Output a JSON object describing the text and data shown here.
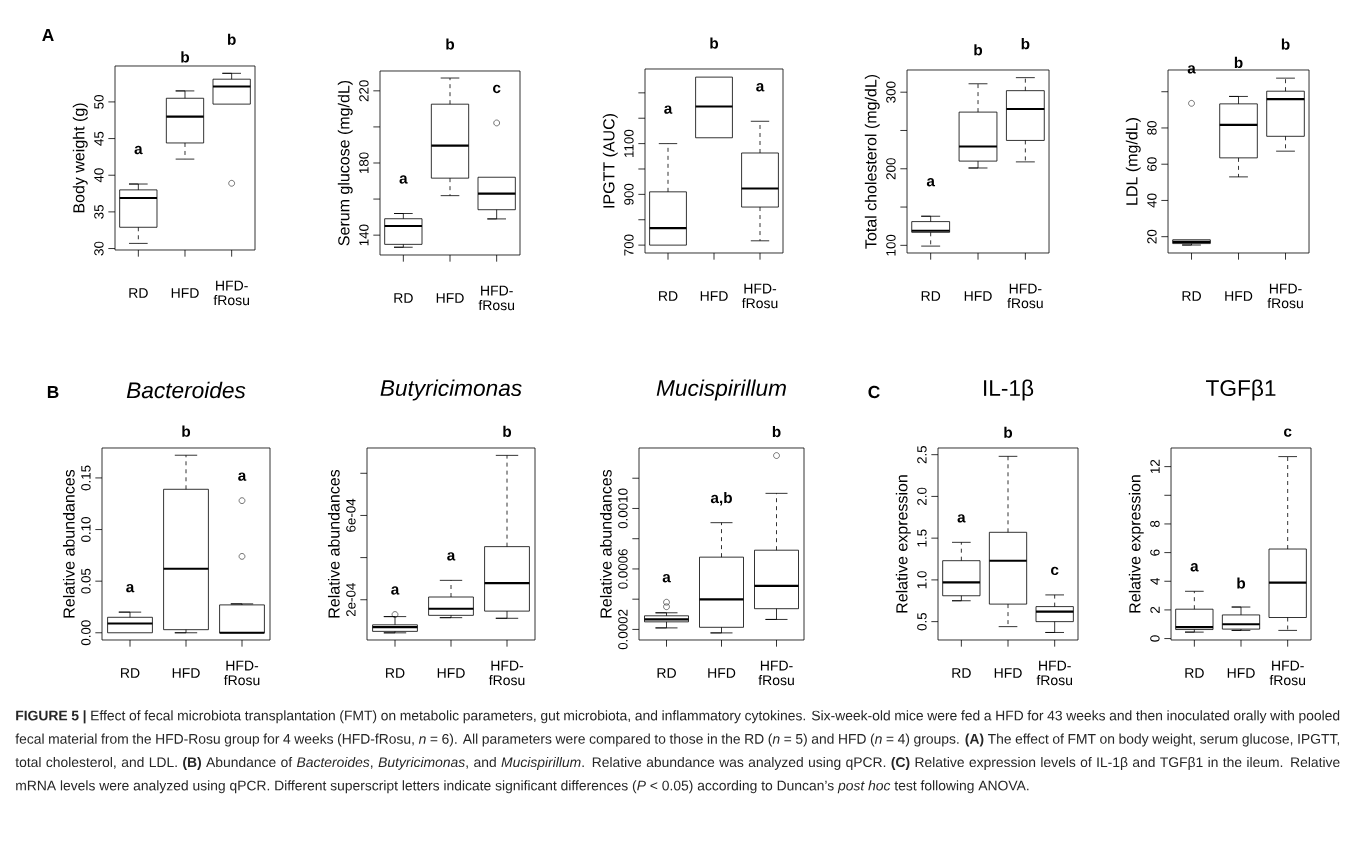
{
  "chart_data": [
    {
      "type": "box",
      "ylabel": "Body weight (g)",
      "categories": [
        "RD",
        "HFD",
        "HFD-fRosu"
      ],
      "ylim": [
        29.8,
        54.9
      ],
      "yticks": [
        30,
        35,
        40,
        45,
        50
      ],
      "series": [
        {
          "color": "#000000",
          "boxes": [
            {
              "low": 30.7,
              "q1": 32.9,
              "median": 36.9,
              "q3": 38.0,
              "high": 38.8
            },
            {
              "low": 42.2,
              "q1": 44.4,
              "median": 48.0,
              "q3": 50.5,
              "high": 51.5
            },
            {
              "low": 49.7,
              "q1": 49.7,
              "median": 52.1,
              "q3": 53.1,
              "high": 53.9,
              "outliers": [
                38.9
              ]
            }
          ]
        }
      ],
      "annotations": [
        "A",
        "a",
        "b",
        "b",
        "**FIGURE 5 |** Effect of fecal microbiota transplantation (FMT) on metabolic parameters, gut microbiota, and inflammatory cytokines. Six-week-old mice were fed a HFD for 43 weeks and then inoculated orally with pooled fecal material from the HFD-Rosu group for 4 weeks (HFD-fRosu, *n* = 6). All parameters were compared to those in the RD (*n* = 5) and HFD (*n* = 4) groups. **(A)** The effect of FMT on body weight, serum glucose, IPGTT, total cholesterol, and LDL. **(B)** Abundance of *Bacteroides*, *Butyricimonas*, and *Mucispirillum*. Relative abundance was analyzed using qPCR. **(C)** Relative expression levels of IL-1β and TGFβ1 in the ileum. Relative mRNA levels were analyzed using qPCR. Different superscript letters indicate significant differences (*P* < 0.05) according to Duncan’s *post hoc* test following ANOVA."
      ]
    },
    {
      "type": "box",
      "ylabel": "Serum glucose (mg/dL)",
      "categories": [
        "RD",
        "HFD",
        "HFD-fRosu"
      ],
      "ylim": [
        129,
        231
      ],
      "yticks": [
        140,
        {
          "value": 160,
          "label": null
        },
        180,
        {
          "value": 200,
          "label": null
        },
        220
      ],
      "series": [
        {
          "color": "#000000",
          "boxes": [
            {
              "low": 133.3,
              "q1": 134.9,
              "median": 145.1,
              "q3": 149.1,
              "high": 152
            },
            {
              "low": 161.9,
              "q1": 171.6,
              "median": 189.6,
              "q3": 212.6,
              "high": 227.1
            },
            {
              "low": 149,
              "q1": 154.1,
              "median": 163,
              "q3": 172.1,
              "high": 172.1,
              "outliers": [
                202.2
              ]
            }
          ]
        }
      ],
      "annotations": [
        "a",
        "b",
        "c"
      ]
    },
    {
      "type": "box",
      "ylabel": "IPGTT (AUC)",
      "categories": [
        "RD",
        "HFD",
        "HFD-fRosu"
      ],
      "ylim": [
        669,
        1394
      ],
      "yticks": [
        700,
        {
          "value": 800,
          "label": null
        },
        900,
        {
          "value": 1000,
          "label": null
        },
        1100,
        {
          "value": 1200,
          "label": null
        },
        {
          "value": 1300,
          "label": null
        }
      ],
      "series": [
        {
          "color": "#000000",
          "boxes": [
            {
              "low": 700,
              "q1": 700,
              "median": 767,
              "q3": 910,
              "high": 1100
            },
            {
              "low": 1123,
              "q1": 1123,
              "median": 1246,
              "q3": 1362,
              "high": 1362
            },
            {
              "low": 717,
              "q1": 850,
              "median": 923,
              "q3": 1063,
              "high": 1188
            }
          ]
        }
      ],
      "annotations": [
        "a",
        "b",
        "a"
      ]
    },
    {
      "type": "box",
      "ylabel": "Total cholesterol (mg/dL)",
      "categories": [
        "RD",
        "HFD",
        "HFD-fRosu"
      ],
      "ylim": [
        90,
        329
      ],
      "yticks": [
        100,
        {
          "value": 150,
          "label": null
        },
        200,
        {
          "value": 250,
          "label": null
        },
        300
      ],
      "series": [
        {
          "color": "#000000",
          "boxes": [
            {
              "low": 99,
              "q1": 117,
              "median": 119,
              "q3": 131,
              "high": 138
            },
            {
              "low": 201,
              "q1": 210,
              "median": 229,
              "q3": 274,
              "high": 311
            },
            {
              "low": 209,
              "q1": 237,
              "median": 278,
              "q3": 302,
              "high": 319
            }
          ]
        }
      ],
      "annotations": [
        "a",
        "b",
        "b"
      ]
    },
    {
      "type": "box",
      "ylabel": "LDL (mg/dL)",
      "categories": [
        "RD",
        "HFD",
        "HFD-fRosu"
      ],
      "ylim": [
        11,
        112
      ],
      "yticks": [
        20,
        40,
        60,
        80,
        {
          "value": 100,
          "label": null
        }
      ],
      "series": [
        {
          "color": "#000000",
          "boxes": [
            {
              "low": 15.4,
              "q1": 16.2,
              "median": 17.1,
              "q3": 18.3,
              "high": 18.3,
              "outliers": [
                93.6
              ]
            },
            {
              "low": 53,
              "q1": 63.5,
              "median": 81.7,
              "q3": 93.3,
              "high": 97.4
            },
            {
              "low": 67.2,
              "q1": 75.4,
              "median": 95.9,
              "q3": 100.3,
              "high": 107.5
            }
          ]
        }
      ],
      "annotations": [
        "a",
        "b",
        "b"
      ]
    },
    {
      "type": "box",
      "title": "*Bacteroides*",
      "ylabel": "Relative abundances",
      "categories": [
        "RD",
        "HFD",
        "HFD-fRosu"
      ],
      "ylim": [
        -0.007,
        0.179
      ],
      "yticks": [
        {
          "value": 0,
          "label": "0.00"
        },
        0.05,
        {
          "value": 0.1,
          "label": "0.10"
        },
        0.15
      ],
      "series": [
        {
          "color": "#000000",
          "boxes": [
            {
              "low": 0,
              "q1": 0,
              "median": 0.009,
              "q3": 0.015,
              "high": 0.02
            },
            {
              "low": 0,
              "q1": 0.003,
              "median": 0.062,
              "q3": 0.139,
              "high": 0.172
            },
            {
              "low": 0,
              "q1": 0,
              "median": 0,
              "q3": 0.027,
              "high": 0.028,
              "outliers": [
                0.074,
                0.128
              ]
            }
          ]
        }
      ],
      "annotations": [
        "B",
        "a",
        "b",
        "a"
      ]
    },
    {
      "type": "box",
      "title": "*Butyricimonas*",
      "ylabel": "Relative abundances",
      "categories": [
        "RD",
        "HFD",
        "HFD-fRosu"
      ],
      "ylim": [
        9e-06,
        0.00092
      ],
      "yticks": [
        {
          "value": 0.0002,
          "label": "2e-04"
        },
        {
          "value": 0.0004,
          "label": null
        },
        {
          "value": 0.0006,
          "label": "6e-04"
        },
        {
          "value": 0.0008,
          "label": null
        }
      ],
      "series": [
        {
          "color": "#000000",
          "boxes": [
            {
              "low": 4.3e-05,
              "q1": 5e-05,
              "median": 7e-05,
              "q3": 8.1e-05,
              "high": 0.00012,
              "outliers": [
                0.00013
              ]
            },
            {
              "low": 0.000115,
              "q1": 0.000126,
              "median": 0.000157,
              "q3": 0.000213,
              "high": 0.000292
            },
            {
              "low": 0.000112,
              "q1": 0.000146,
              "median": 0.000279,
              "q3": 0.000452,
              "high": 0.000885
            }
          ]
        }
      ],
      "annotations": [
        "a",
        "a",
        "b"
      ]
    },
    {
      "type": "box",
      "title": "*Mucispirillum*",
      "ylabel": "Relative abundances",
      "categories": [
        "RD",
        "HFD",
        "HFD-fRosu"
      ],
      "ylim": [
        0.00013,
        0.0014
      ],
      "yticks": [
        0.0002,
        {
          "value": 0.0004,
          "label": null
        },
        0.0006,
        {
          "value": 0.0008,
          "label": null
        },
        {
          "value": 0.001,
          "label": "0.0010"
        },
        {
          "value": 0.0012,
          "label": null
        }
      ],
      "series": [
        {
          "color": "#000000",
          "boxes": [
            {
              "low": 0.00021,
              "q1": 0.00025,
              "median": 0.000266,
              "q3": 0.00029,
              "high": 0.00031,
              "outliers": [
                0.00035,
                0.00038
              ]
            },
            {
              "low": 0.000177,
              "q1": 0.000214,
              "median": 0.000399,
              "q3": 0.000678,
              "high": 0.000906
            },
            {
              "low": 0.000266,
              "q1": 0.000337,
              "median": 0.000488,
              "q3": 0.000724,
              "high": 0.0011,
              "outliers": [
                0.00135
              ]
            }
          ]
        }
      ],
      "annotations": [
        "a",
        "a,b",
        "b"
      ]
    },
    {
      "type": "box",
      "title": "IL-1β",
      "ylabel": "Relative expression",
      "categories": [
        "RD",
        "HFD",
        "HFD-fRosu"
      ],
      "ylim": [
        0.28,
        2.58
      ],
      "yticks": [
        0.5,
        {
          "value": 1,
          "label": "1.0"
        },
        1.5,
        {
          "value": 2,
          "label": "2.0"
        },
        2.5
      ],
      "series": [
        {
          "color": "#000000",
          "boxes": [
            {
              "low": 0.75,
              "q1": 0.81,
              "median": 0.97,
              "q3": 1.23,
              "high": 1.45
            },
            {
              "low": 0.44,
              "q1": 0.71,
              "median": 1.23,
              "q3": 1.57,
              "high": 2.48
            },
            {
              "low": 0.37,
              "q1": 0.5,
              "median": 0.62,
              "q3": 0.68,
              "high": 0.82
            }
          ]
        }
      ],
      "annotations": [
        "C",
        "a",
        "b",
        "c"
      ]
    },
    {
      "type": "box",
      "title": "TGFβ1",
      "ylabel": "Relative expression",
      "categories": [
        "RD",
        "HFD",
        "HFD-fRosu"
      ],
      "ylim": [
        -0.1,
        13.3
      ],
      "yticks": [
        0,
        2,
        4,
        6,
        8,
        {
          "value": 10,
          "label": null
        },
        12
      ],
      "series": [
        {
          "color": "#000000",
          "boxes": [
            {
              "low": 0.45,
              "q1": 0.63,
              "median": 0.8,
              "q3": 2.05,
              "high": 3.3
            },
            {
              "low": 0.57,
              "q1": 0.66,
              "median": 1.0,
              "q3": 1.65,
              "high": 2.2
            },
            {
              "low": 0.57,
              "q1": 1.47,
              "median": 3.9,
              "q3": 6.25,
              "high": 12.7
            }
          ]
        }
      ],
      "annotations": [
        "a",
        "b",
        "c"
      ]
    }
  ]
}
